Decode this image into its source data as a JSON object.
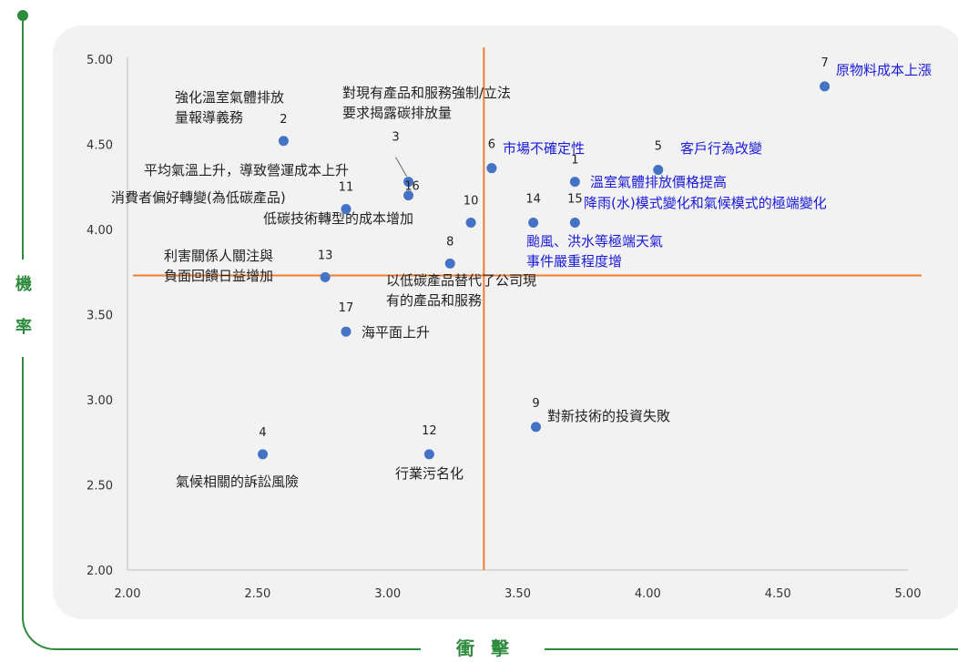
{
  "y_axis_title": "機率",
  "x_axis_title": "衝擊",
  "colors": {
    "frame": "#2e8b3e",
    "panel": "#f2f2f2",
    "point": "#4472c4",
    "threshold_line": "#ed7d31",
    "label_dark": "#222222",
    "label_blue": "#1a1adb"
  },
  "chart_data": {
    "type": "scatter",
    "title": "",
    "xlabel": "衝擊",
    "ylabel": "機率",
    "xlim": [
      2.0,
      5.0
    ],
    "ylim": [
      2.0,
      5.0
    ],
    "x_ticks": [
      "2.00",
      "2.50",
      "3.00",
      "3.50",
      "4.00",
      "4.50",
      "5.00"
    ],
    "y_ticks": [
      "2.00",
      "2.50",
      "3.00",
      "3.50",
      "4.00",
      "4.50",
      "5.00"
    ],
    "grid": false,
    "threshold_x": 3.37,
    "threshold_y": 3.73,
    "points": [
      {
        "id": "1",
        "x": 3.72,
        "y": 4.28,
        "label": "溫室氣體排放價格提高",
        "highlight": true
      },
      {
        "id": "2",
        "x": 2.6,
        "y": 4.52,
        "label": "強化溫室氣體排放\n量報導義務",
        "highlight": false
      },
      {
        "id": "3",
        "x": 3.08,
        "y": 4.28,
        "label": "對現有產品和服務強制/立法\n要求揭露碳排放量",
        "highlight": false
      },
      {
        "id": "4",
        "x": 2.52,
        "y": 2.68,
        "label": "氣候相關的訴訟風險",
        "highlight": false
      },
      {
        "id": "5",
        "x": 4.04,
        "y": 4.35,
        "label": "客戶行為改變",
        "highlight": true
      },
      {
        "id": "6",
        "x": 3.4,
        "y": 4.36,
        "label": "市場不確定性",
        "highlight": true
      },
      {
        "id": "7",
        "x": 4.68,
        "y": 4.84,
        "label": "原物料成本上漲",
        "highlight": true
      },
      {
        "id": "8",
        "x": 3.24,
        "y": 3.8,
        "label": "以低碳產品替代了公司現\n有的產品和服務",
        "highlight": false
      },
      {
        "id": "9",
        "x": 3.57,
        "y": 2.84,
        "label": "對新技術的投資失敗",
        "highlight": false
      },
      {
        "id": "10",
        "x": 3.32,
        "y": 4.04,
        "label": "低碳技術轉型的成本增加",
        "highlight": false
      },
      {
        "id": "11",
        "x": 2.84,
        "y": 4.12,
        "label": "消費者偏好轉變(為低碳產品)",
        "highlight": false
      },
      {
        "id": "12",
        "x": 3.16,
        "y": 2.68,
        "label": "行業污名化",
        "highlight": false
      },
      {
        "id": "13",
        "x": 2.76,
        "y": 3.72,
        "label": "利害關係人關注與\n負面回饋日益增加",
        "highlight": false
      },
      {
        "id": "14",
        "x": 3.56,
        "y": 4.04,
        "label": "颱風、洪水等極端天氣\n事件嚴重程度增",
        "highlight": true
      },
      {
        "id": "15",
        "x": 3.72,
        "y": 4.04,
        "label": "降雨(水)模式變化和氣候模式的極端變化",
        "highlight": true
      },
      {
        "id": "16",
        "x": 3.08,
        "y": 4.2,
        "label": "平均氣溫上升，導致營運成本上升",
        "highlight": false
      },
      {
        "id": "17",
        "x": 2.84,
        "y": 3.4,
        "label": "海平面上升",
        "highlight": false
      }
    ]
  }
}
